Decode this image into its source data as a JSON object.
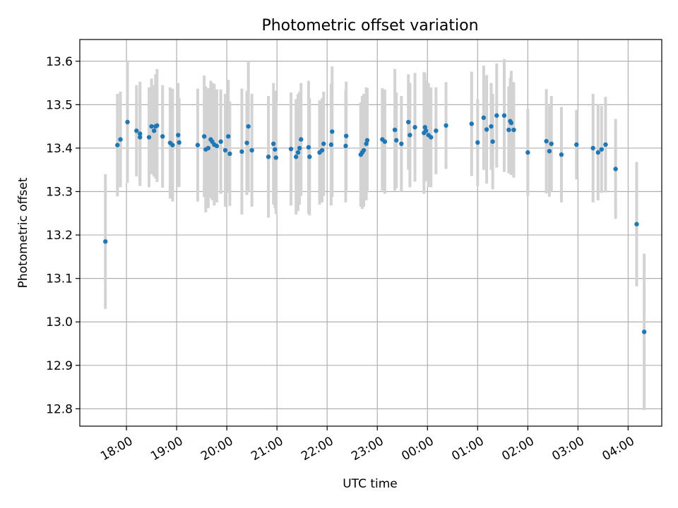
{
  "chart_data": {
    "type": "scatter",
    "title": "Photometric offset variation",
    "xlabel": "UTC time",
    "ylabel": "Photometric offset",
    "x_ticks": [
      "18:00",
      "19:00",
      "20:00",
      "21:00",
      "22:00",
      "23:00",
      "00:00",
      "01:00",
      "02:00",
      "03:00",
      "04:00"
    ],
    "x_unit": "hours since 18:00 UTC",
    "xlim": [
      -0.93,
      10.67
    ],
    "y_ticks": [
      "12.8",
      "12.9",
      "13.0",
      "13.1",
      "13.2",
      "13.3",
      "13.4",
      "13.5",
      "13.6"
    ],
    "ylim": [
      12.76,
      13.65
    ],
    "grid": true,
    "colors": {
      "point": "#1f77b4",
      "errorbar": "#d3d3d3"
    },
    "series": [
      {
        "name": "offset",
        "x": [
          -0.42,
          -0.18,
          -0.12,
          0.02,
          0.2,
          0.27,
          0.27,
          0.45,
          0.5,
          0.55,
          0.58,
          0.61,
          0.72,
          0.87,
          0.92,
          1.03,
          1.05,
          1.42,
          1.55,
          1.58,
          1.63,
          1.68,
          1.71,
          1.75,
          1.8,
          1.88,
          1.97,
          2.03,
          2.06,
          2.3,
          2.4,
          2.43,
          2.5,
          2.83,
          2.93,
          2.96,
          2.98,
          3.28,
          3.38,
          3.42,
          3.45,
          3.48,
          3.63,
          3.65,
          3.85,
          3.9,
          3.93,
          4.08,
          4.1,
          4.37,
          4.38,
          4.67,
          4.7,
          4.73,
          4.78,
          4.8,
          5.1,
          5.15,
          5.35,
          5.38,
          5.48,
          5.62,
          5.65,
          5.75,
          5.93,
          5.95,
          5.97,
          6.02,
          6.07,
          6.17,
          6.37,
          6.88,
          7.0,
          7.12,
          7.18,
          7.27,
          7.3,
          7.38,
          7.53,
          7.62,
          7.65,
          7.67,
          7.72,
          8.0,
          8.37,
          8.43,
          8.47,
          8.67,
          8.97,
          9.3,
          9.4,
          9.47,
          9.55,
          9.75,
          10.17,
          10.32
        ],
        "y": [
          13.185,
          13.407,
          13.42,
          13.46,
          13.44,
          13.425,
          13.433,
          13.425,
          13.45,
          13.44,
          13.45,
          13.452,
          13.427,
          13.412,
          13.407,
          13.43,
          13.413,
          13.407,
          13.427,
          13.397,
          13.4,
          13.42,
          13.415,
          13.408,
          13.405,
          13.415,
          13.395,
          13.427,
          13.387,
          13.392,
          13.412,
          13.45,
          13.395,
          13.38,
          13.41,
          13.397,
          13.378,
          13.398,
          13.38,
          13.39,
          13.4,
          13.42,
          13.402,
          13.38,
          13.39,
          13.395,
          13.41,
          13.408,
          13.438,
          13.405,
          13.428,
          13.385,
          13.39,
          13.395,
          13.41,
          13.418,
          13.42,
          13.415,
          13.442,
          13.418,
          13.41,
          13.46,
          13.43,
          13.448,
          13.435,
          13.448,
          13.44,
          13.43,
          13.425,
          13.44,
          13.452,
          13.456,
          13.413,
          13.47,
          13.443,
          13.45,
          13.415,
          13.475,
          13.475,
          13.442,
          13.462,
          13.458,
          13.442,
          13.39,
          13.416,
          13.393,
          13.41,
          13.385,
          13.408,
          13.4,
          13.39,
          13.397,
          13.408,
          13.352,
          13.225,
          12.977
        ],
        "err": [
          0.155,
          0.118,
          0.11,
          0.14,
          0.105,
          0.11,
          0.12,
          0.115,
          0.11,
          0.105,
          0.12,
          0.13,
          0.118,
          0.128,
          0.13,
          0.12,
          0.102,
          0.13,
          0.14,
          0.145,
          0.138,
          0.135,
          0.135,
          0.14,
          0.13,
          0.12,
          0.13,
          0.13,
          0.12,
          0.145,
          0.12,
          0.15,
          0.13,
          0.14,
          0.14,
          0.135,
          0.13,
          0.13,
          0.133,
          0.135,
          0.13,
          0.13,
          0.153,
          0.135,
          0.12,
          0.12,
          0.12,
          0.14,
          0.15,
          0.13,
          0.125,
          0.12,
          0.13,
          0.13,
          0.13,
          0.12,
          0.118,
          0.12,
          0.14,
          0.11,
          0.11,
          0.11,
          0.12,
          0.125,
          0.14,
          0.125,
          0.115,
          0.12,
          0.115,
          0.1,
          0.1,
          0.12,
          0.1,
          0.12,
          0.125,
          0.1,
          0.11,
          0.12,
          0.13,
          0.1,
          0.1,
          0.12,
          0.11,
          0.1,
          0.12,
          0.105,
          0.11,
          0.11,
          0.08,
          0.125,
          0.11,
          0.1,
          0.11,
          0.115,
          0.143,
          0.18
        ]
      }
    ]
  }
}
